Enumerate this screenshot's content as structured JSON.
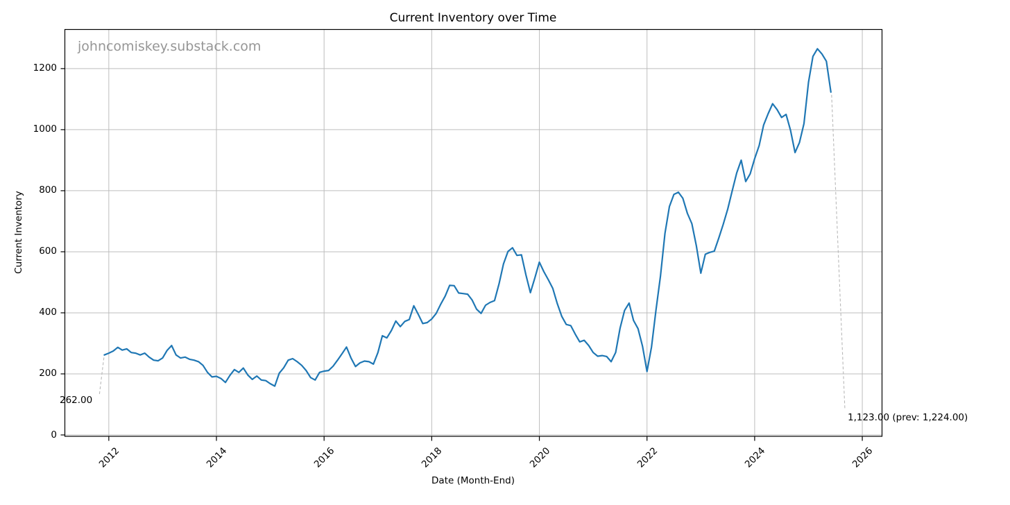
{
  "watermark": "johncomiskey.substack.com",
  "colors": {
    "line": "#1f77b4",
    "grid": "#bdbdbd",
    "spine": "#000000",
    "leader": "#b8b8b8",
    "watermark": "#969696"
  },
  "chart_data": {
    "type": "line",
    "title": "Current Inventory over Time",
    "xlabel": "Date (Month-End)",
    "ylabel": "Current Inventory",
    "series_name": "Current Inventory",
    "frequency": "monthly",
    "x_start_month": "2011-12",
    "x_end_month": "2025-06",
    "grid": true,
    "x_tick_labels": [
      "2012",
      "2014",
      "2016",
      "2018",
      "2020",
      "2022",
      "2024",
      "2026"
    ],
    "x_tick_years": [
      2012,
      2014,
      2016,
      2018,
      2020,
      2022,
      2024,
      2026
    ],
    "y_tick_labels": [
      "0",
      "200",
      "400",
      "600",
      "800",
      "1000",
      "1200"
    ],
    "y_ticks": [
      0,
      200,
      400,
      600,
      800,
      1000,
      1200
    ],
    "xlim_years": [
      2011.19,
      2026.36
    ],
    "ylim": [
      0,
      1327
    ],
    "values": [
      262,
      268,
      275,
      287,
      278,
      282,
      270,
      268,
      262,
      268,
      255,
      245,
      243,
      252,
      277,
      293,
      262,
      252,
      255,
      248,
      245,
      240,
      228,
      205,
      190,
      192,
      185,
      172,
      195,
      214,
      205,
      219,
      196,
      182,
      193,
      180,
      178,
      168,
      160,
      202,
      220,
      245,
      250,
      240,
      228,
      211,
      188,
      180,
      205,
      209,
      211,
      225,
      245,
      266,
      288,
      252,
      224,
      236,
      242,
      240,
      232,
      270,
      325,
      318,
      342,
      373,
      355,
      372,
      378,
      423,
      395,
      365,
      368,
      380,
      398,
      428,
      455,
      490,
      489,
      465,
      463,
      461,
      442,
      412,
      398,
      425,
      434,
      440,
      495,
      560,
      601,
      613,
      588,
      590,
      525,
      466,
      515,
      566,
      535,
      508,
      480,
      430,
      388,
      362,
      358,
      330,
      305,
      310,
      293,
      270,
      258,
      260,
      257,
      240,
      270,
      350,
      408,
      432,
      375,
      348,
      290,
      208,
      288,
      410,
      520,
      660,
      748,
      788,
      795,
      775,
      726,
      692,
      620,
      530,
      592,
      598,
      602,
      645,
      690,
      740,
      800,
      858,
      900,
      830,
      855,
      905,
      948,
      1015,
      1052,
      1085,
      1066,
      1040,
      1050,
      998,
      925,
      958,
      1020,
      1155,
      1240,
      1265,
      1248,
      1224,
      1123
    ],
    "annotations": {
      "first": {
        "label": "262.00",
        "value": 262
      },
      "last": {
        "label": "1,123.00 (prev: 1,224.00)",
        "value": 1123,
        "prev_value": 1224
      }
    }
  }
}
